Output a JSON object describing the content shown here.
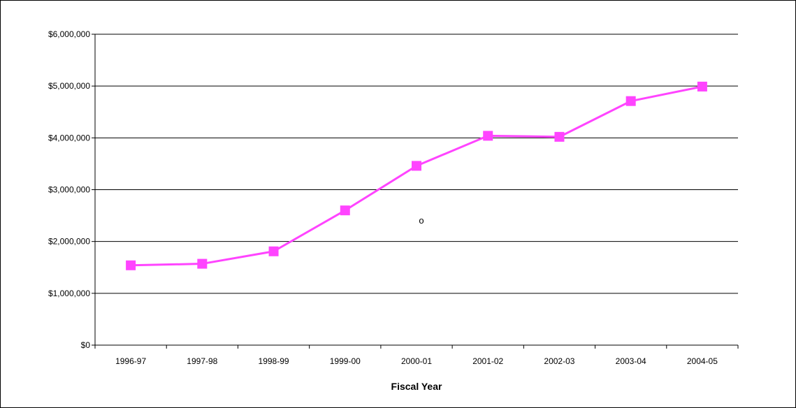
{
  "chart_data": {
    "type": "line",
    "title": "",
    "xlabel": "Fiscal Year",
    "ylabel": "",
    "categories": [
      "1996-97",
      "1997-98",
      "1998-99",
      "1999-00",
      "2000-01",
      "2001-02",
      "2002-03",
      "2003-04",
      "2004-05"
    ],
    "series": [
      {
        "values": [
          1540000,
          1570000,
          1810000,
          2600000,
          3460000,
          4040000,
          4020000,
          4710000,
          4990000
        ],
        "color": "#FF44FF",
        "marker": "square"
      }
    ],
    "ylim": [
      0,
      6000000
    ],
    "yticks": [
      0,
      1000000,
      2000000,
      3000000,
      4000000,
      5000000,
      6000000
    ],
    "ytick_labels": [
      "$0",
      "$1,000,000",
      "$2,000,000",
      "$3,000,000",
      "$4,000,000",
      "$5,000,000",
      "$6,000,000"
    ],
    "grid": true,
    "annotation": "o"
  }
}
